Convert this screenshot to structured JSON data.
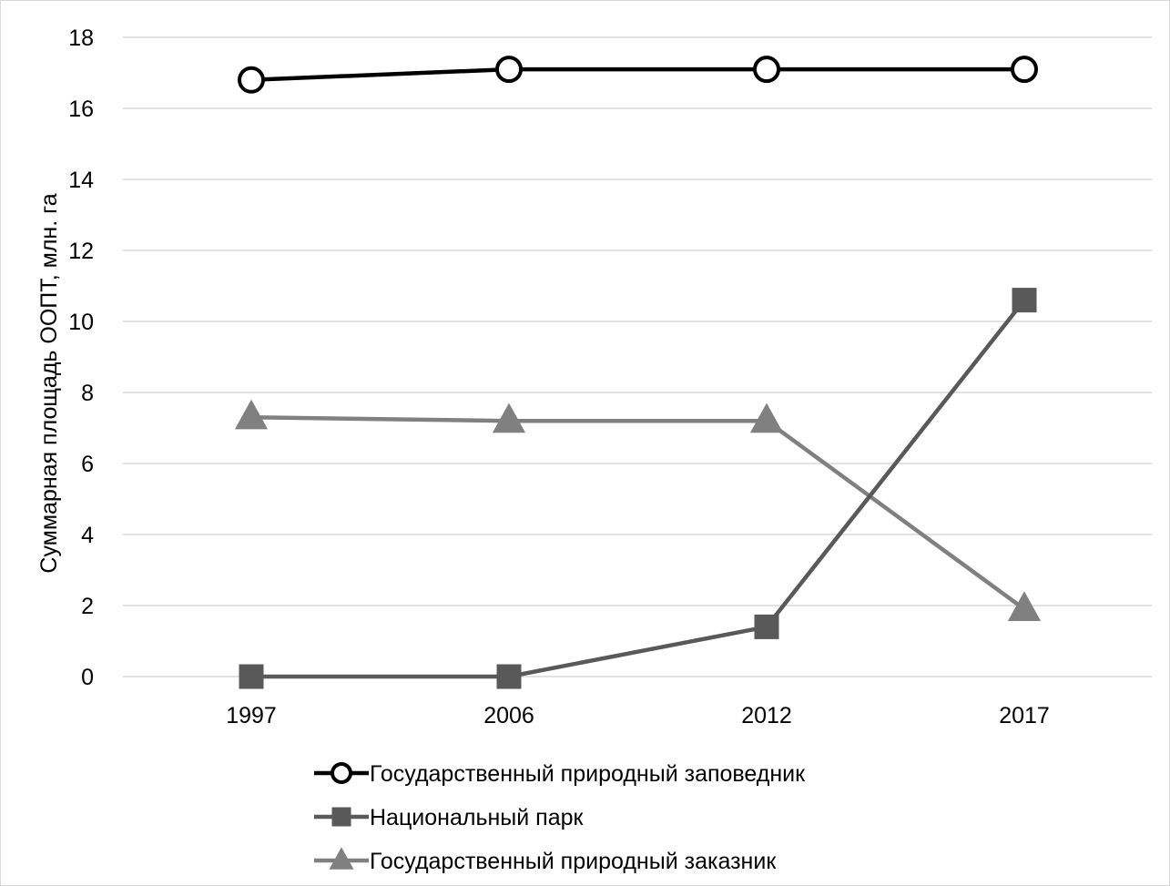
{
  "chart_data": {
    "type": "line",
    "title": "",
    "xlabel": "",
    "ylabel": "Суммарная площадь ООПТ, млн. га",
    "categories": [
      "1997",
      "2006",
      "2012",
      "2017"
    ],
    "ylim": [
      0,
      18
    ],
    "yticks": [
      "0",
      "2",
      "4",
      "6",
      "8",
      "10",
      "12",
      "14",
      "16",
      "18"
    ],
    "grid": "horizontal",
    "legend_position": "bottom",
    "series": [
      {
        "name": "Государственный природный заповедник",
        "values": [
          16.8,
          17.1,
          17.1,
          17.1
        ],
        "color": "#000000",
        "marker": "open-circle"
      },
      {
        "name": "Национальный парк",
        "values": [
          0,
          0,
          1.4,
          10.6
        ],
        "color": "#595959",
        "marker": "square"
      },
      {
        "name": "Государственный природный заказник",
        "values": [
          7.3,
          7.2,
          7.2,
          1.9
        ],
        "color": "#808080",
        "marker": "triangle"
      }
    ]
  }
}
